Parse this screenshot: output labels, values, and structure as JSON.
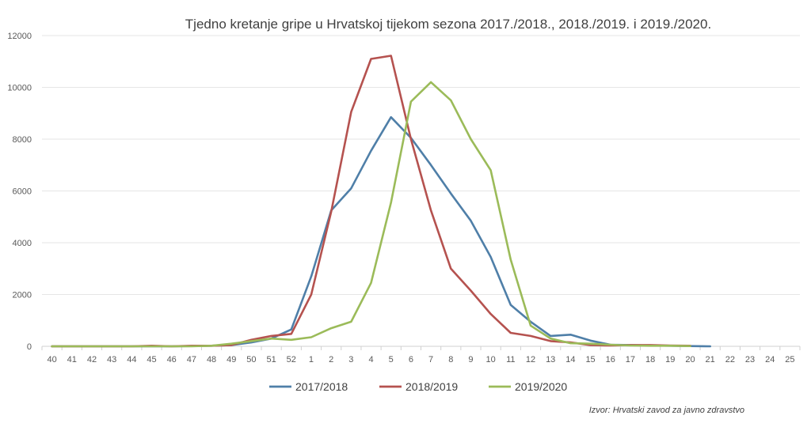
{
  "chart_data": {
    "type": "line",
    "title": "Tjedno kretanje gripe u Hrvatskoj tijekom sezona 2017./2018., 2018./2019. i 2019./2020.",
    "xlabel": "",
    "ylabel": "",
    "ylim": [
      0,
      12000
    ],
    "yticks": [
      "0",
      "2000",
      "4000",
      "6000",
      "8000",
      "10000",
      "12000"
    ],
    "categories": [
      "40",
      "41",
      "42",
      "43",
      "44",
      "45",
      "46",
      "47",
      "48",
      "49",
      "50",
      "51",
      "52",
      "1",
      "2",
      "3",
      "4",
      "5",
      "6",
      "7",
      "8",
      "9",
      "10",
      "11",
      "12",
      "13",
      "14",
      "15",
      "16",
      "17",
      "18",
      "19",
      "20",
      "21",
      "22",
      "23",
      "24",
      "25"
    ],
    "grid": true,
    "legend_position": "bottom",
    "series": [
      {
        "name": "2017/2018",
        "color": "#4f7fa8",
        "values": [
          0,
          0,
          0,
          0,
          0,
          0,
          0,
          10,
          20,
          50,
          150,
          300,
          650,
          2700,
          5250,
          6100,
          7550,
          8850,
          8050,
          7000,
          5900,
          4850,
          3450,
          1600,
          950,
          400,
          450,
          220,
          60,
          50,
          30,
          20,
          10,
          0,
          null,
          null,
          null,
          null
        ]
      },
      {
        "name": "2018/2019",
        "color": "#b5524f",
        "values": [
          0,
          0,
          0,
          0,
          0,
          20,
          0,
          20,
          20,
          50,
          250,
          400,
          480,
          2000,
          5200,
          9050,
          11100,
          11220,
          8000,
          5250,
          3000,
          2150,
          1250,
          520,
          400,
          200,
          150,
          50,
          30,
          50,
          50,
          30,
          20,
          null,
          null,
          null,
          null,
          null
        ]
      },
      {
        "name": "2019/2020",
        "color": "#9bbb59",
        "values": [
          0,
          0,
          0,
          0,
          0,
          0,
          0,
          0,
          20,
          100,
          200,
          300,
          250,
          350,
          700,
          950,
          2450,
          5550,
          9450,
          10200,
          9500,
          8000,
          6800,
          3350,
          800,
          300,
          120,
          100,
          60,
          30,
          20,
          20,
          10,
          null,
          null,
          null,
          null,
          null
        ]
      }
    ],
    "source": "Izvor: Hrvatski zavod za javno zdravstvo"
  }
}
